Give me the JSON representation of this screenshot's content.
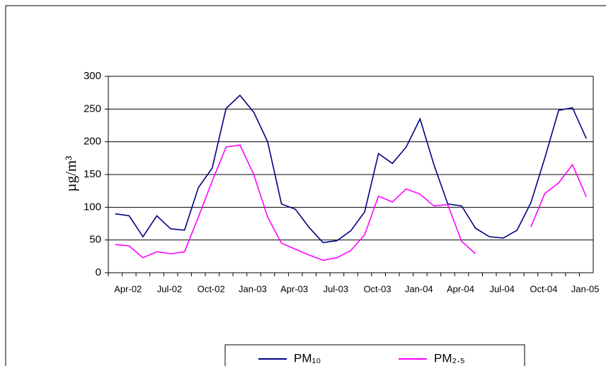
{
  "chart_data": {
    "type": "line",
    "y_label": "µg/m³",
    "categories": [
      "Apr-02",
      null,
      null,
      "Jul-02",
      null,
      null,
      "Oct-02",
      null,
      null,
      "Jan-03",
      null,
      null,
      "Apr-03",
      null,
      null,
      "Jul-03",
      null,
      null,
      "Oct-03",
      null,
      null,
      "Jan-04",
      null,
      null,
      "Apr-04",
      null,
      null,
      "Jul-04",
      null,
      null,
      "Oct-04",
      null,
      null,
      "Jan-05",
      null
    ],
    "series": [
      {
        "name": "PM₁₀",
        "color": "#000080",
        "values": [
          90,
          87,
          55,
          87,
          67,
          65,
          130,
          160,
          251,
          271,
          245,
          200,
          105,
          97,
          69,
          46,
          49,
          64,
          93,
          182,
          167,
          192,
          235,
          165,
          105,
          102,
          68,
          55,
          53,
          65,
          107,
          175,
          248,
          252,
          205
        ]
      },
      {
        "name": "PM₂.₅",
        "color": "#ff00ff",
        "values": [
          43,
          41,
          23,
          32,
          29,
          32,
          85,
          140,
          192,
          195,
          150,
          85,
          45,
          36,
          27,
          19,
          23,
          34,
          58,
          117,
          108,
          128,
          120,
          102,
          104,
          48,
          29,
          null,
          null,
          null,
          70,
          121,
          137,
          165,
          116
        ]
      }
    ],
    "ylim": [
      0,
      300
    ],
    "yticks": [
      0,
      50,
      100,
      150,
      200,
      250,
      300
    ],
    "grid": true
  }
}
